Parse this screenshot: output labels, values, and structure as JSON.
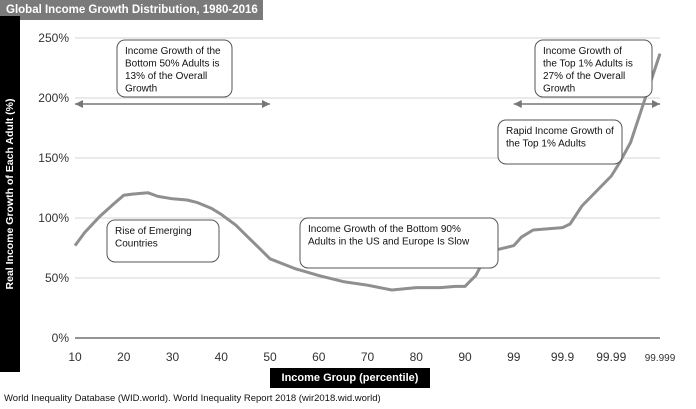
{
  "chart_data": {
    "type": "line",
    "title": "Global Income Growth Distribution, 1980-2016",
    "xlabel": "Income Group (percentile)",
    "ylabel": "Real Income Growth of Each Adult (%)",
    "ylim": [
      0,
      250
    ],
    "yticks": [
      "0%",
      "50%",
      "100%",
      "150%",
      "200%",
      "250%"
    ],
    "xticks": [
      "10",
      "20",
      "30",
      "40",
      "50",
      "60",
      "70",
      "80",
      "90",
      "99",
      "99.9",
      "99.99",
      "99.999"
    ],
    "grid": "horizontal",
    "series": [
      {
        "x": [
          10,
          12,
          15,
          18,
          20,
          22,
          25,
          27,
          30,
          33,
          35,
          38,
          40,
          43,
          45,
          48,
          50,
          55,
          60,
          65,
          70,
          75,
          80,
          85,
          88,
          90,
          92,
          94,
          96,
          97,
          98,
          99,
          99.3,
          99.6,
          99.9,
          99.93,
          99.96,
          99.99,
          99.993,
          99.996,
          99.999
        ],
        "values": [
          77,
          88,
          101,
          112,
          119,
          120,
          121,
          118,
          116,
          115,
          113,
          108,
          103,
          94,
          86,
          74,
          66,
          58,
          52,
          47,
          44,
          40,
          42,
          42,
          43,
          43,
          47,
          52,
          66,
          73,
          74,
          77,
          84,
          90,
          92,
          95,
          110,
          135,
          145,
          163,
          237
        ]
      }
    ],
    "annotations": [
      "Income Growth of the Bottom 50% Adults is 13% of the Overall Growth",
      "Income Growth of the Top 1% Adults is 27% of the Overall Growth",
      "Rapid Income Growth of the Top 1% Adults",
      "Rise of Emerging Countries",
      "Income Growth of the Bottom 90% Adults in the US and Europe Is Slow"
    ],
    "annotation_lines": [
      [
        "Income Growth of the",
        "Bottom 50% Adults is",
        "13% of the Overall",
        "Growth"
      ],
      [
        "Income Growth of",
        "the Top 1% Adults is",
        "27% of the Overall",
        "Growth"
      ],
      [
        "Rapid Income Growth of",
        "the Top 1% Adults"
      ],
      [
        "Rise of Emerging",
        "Countries"
      ],
      [
        "Income Growth of the Bottom 90%",
        "Adults in the US and Europe Is Slow"
      ]
    ],
    "source": "World Inequality Database (WID.world). World Inequality Report 2018 (wir2018.wid.world)"
  }
}
